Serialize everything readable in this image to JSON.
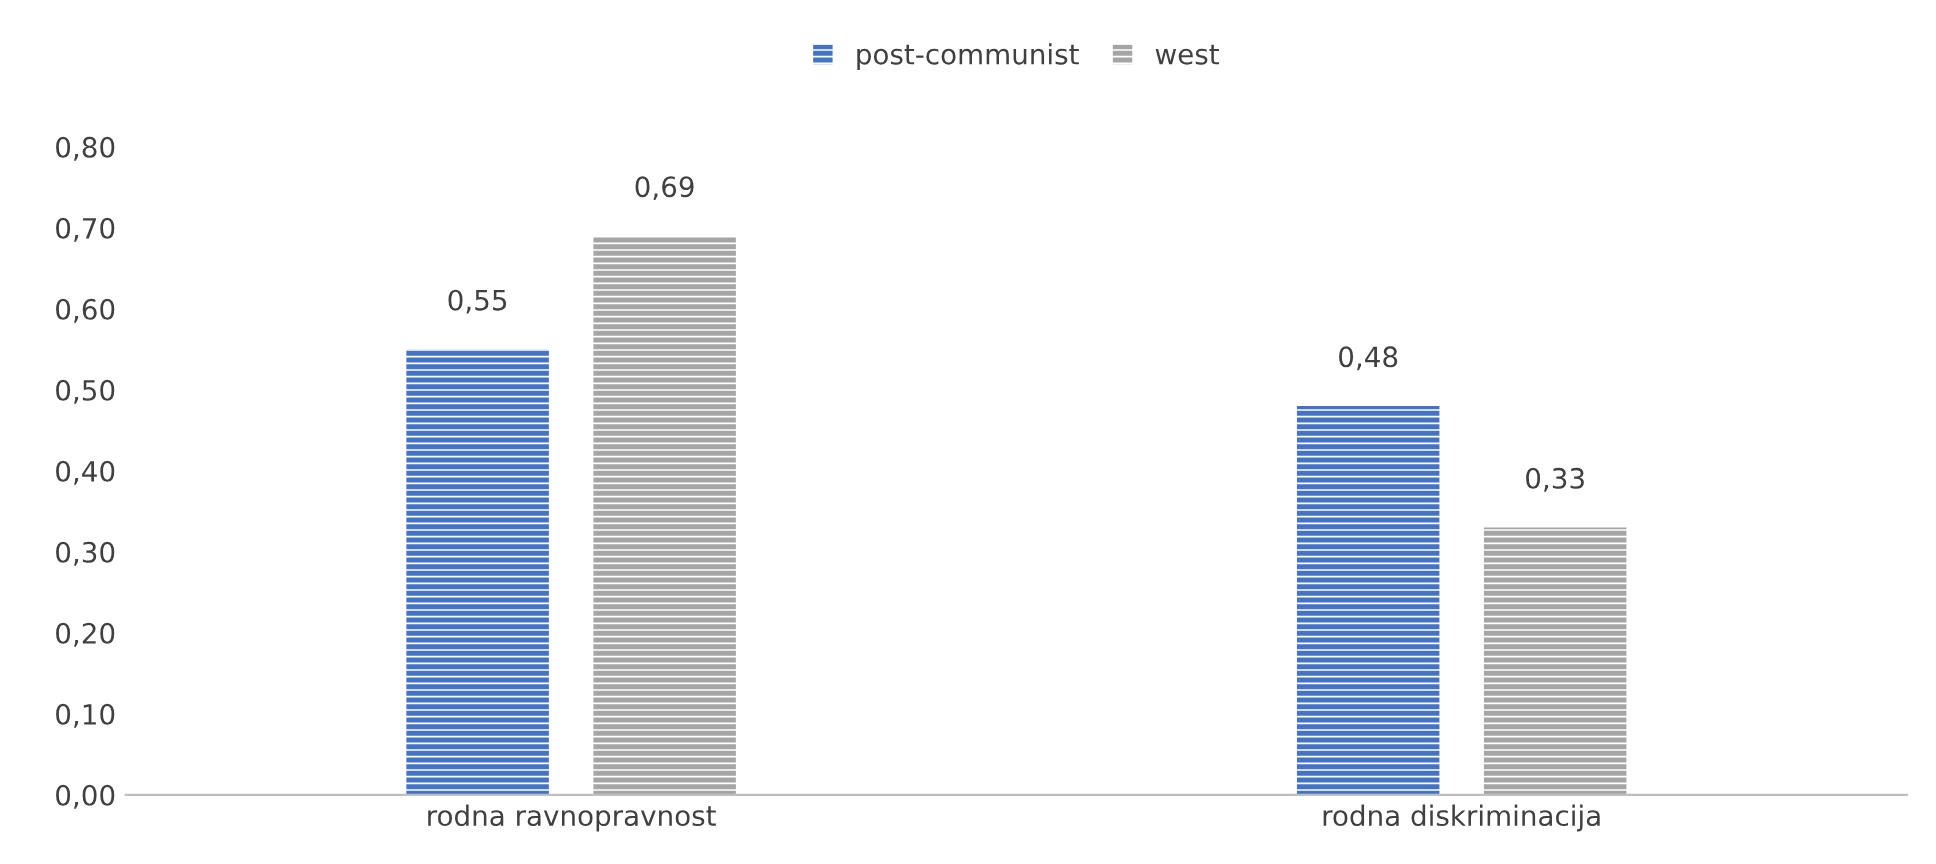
{
  "chart_data": {
    "type": "bar",
    "categories": [
      "rodna ravnopravnost",
      "rodna diskriminacija"
    ],
    "series": [
      {
        "name": "post-communist",
        "color": "#4472c4",
        "values": [
          0.55,
          0.48
        ],
        "value_labels": [
          "0,55",
          "0,48"
        ]
      },
      {
        "name": "west",
        "color": "#a5a5a5",
        "values": [
          0.69,
          0.33
        ],
        "value_labels": [
          "0,69",
          "0,33"
        ]
      }
    ],
    "ylim": [
      0,
      0.8
    ],
    "yticks": [
      {
        "value": 0,
        "label": "0,00"
      },
      {
        "value": 0.1,
        "label": "0,10"
      },
      {
        "value": 0.2,
        "label": "0,20"
      },
      {
        "value": 0.3,
        "label": "0,30"
      },
      {
        "value": 0.4,
        "label": "0,40"
      },
      {
        "value": 0.5,
        "label": "0,50"
      },
      {
        "value": 0.6,
        "label": "0,60"
      },
      {
        "value": 0.7,
        "label": "0,70"
      },
      {
        "value": 0.8,
        "label": "0,80"
      }
    ],
    "grid": false,
    "legend": "top"
  }
}
